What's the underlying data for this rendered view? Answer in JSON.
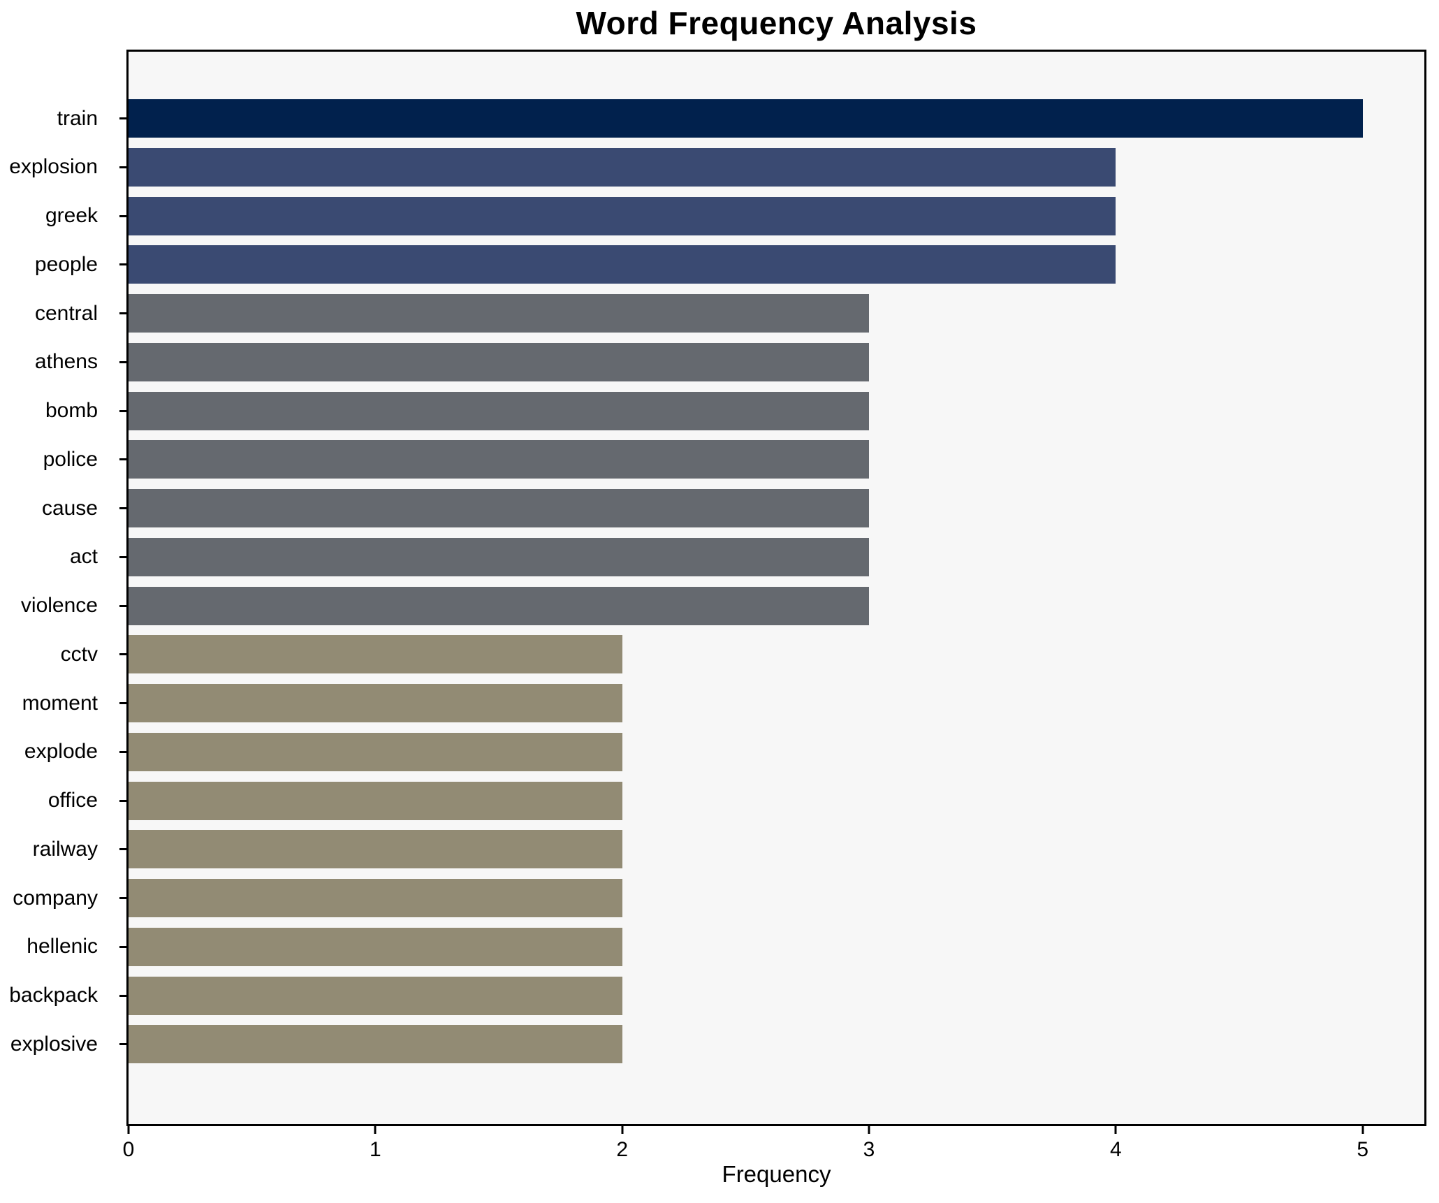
{
  "chart_data": {
    "type": "bar",
    "orientation": "horizontal",
    "title": "Word Frequency Analysis",
    "xlabel": "Frequency",
    "ylabel": "",
    "categories": [
      "train",
      "explosion",
      "greek",
      "people",
      "central",
      "athens",
      "bomb",
      "police",
      "cause",
      "act",
      "violence",
      "cctv",
      "moment",
      "explode",
      "office",
      "railway",
      "company",
      "hellenic",
      "backpack",
      "explosive"
    ],
    "values": [
      5,
      4,
      4,
      4,
      3,
      3,
      3,
      3,
      3,
      3,
      3,
      2,
      2,
      2,
      2,
      2,
      2,
      2,
      2,
      2
    ],
    "bar_colors": [
      "#01214d",
      "#3a4a72",
      "#3a4a72",
      "#3a4a72",
      "#65696f",
      "#65696f",
      "#65696f",
      "#65696f",
      "#65696f",
      "#65696f",
      "#65696f",
      "#928b74",
      "#928b74",
      "#928b74",
      "#928b74",
      "#928b74",
      "#928b74",
      "#928b74",
      "#928b74",
      "#928b74"
    ],
    "x_ticks": [
      0,
      1,
      2,
      3,
      4,
      5
    ],
    "xlim": [
      0,
      5.25
    ],
    "grid": false,
    "legend": false,
    "plot_bg": "#f7f7f7",
    "fig_bg": "#ffffff",
    "axis_color": "#000000",
    "text_color": "#000000"
  }
}
